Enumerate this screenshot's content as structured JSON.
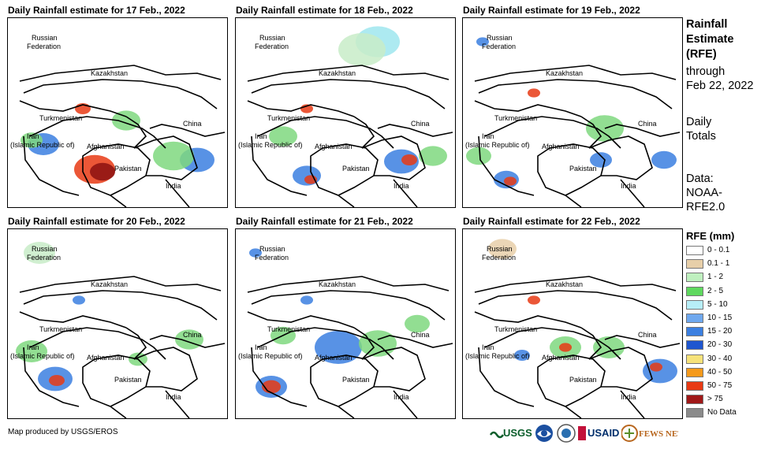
{
  "panels": [
    {
      "title": "Daily Rainfall estimate for 17 Feb., 2022",
      "blobs": [
        [
          110,
          192,
          26,
          "#e83a14"
        ],
        [
          120,
          195,
          16,
          "#8c1010"
        ],
        [
          45,
          160,
          20,
          "#3b7fe0"
        ],
        [
          240,
          180,
          22,
          "#3b7fe0"
        ],
        [
          210,
          175,
          26,
          "#7fd87f"
        ],
        [
          150,
          130,
          18,
          "#7fd87f"
        ],
        [
          95,
          115,
          10,
          "#e83a14"
        ],
        [
          30,
          155,
          14,
          "#7fd87f"
        ]
      ]
    },
    {
      "title": "Daily Rainfall estimate for 18 Feb., 2022",
      "blobs": [
        [
          90,
          200,
          18,
          "#3b7fe0"
        ],
        [
          95,
          205,
          8,
          "#e83a14"
        ],
        [
          210,
          182,
          22,
          "#3b7fe0"
        ],
        [
          220,
          180,
          10,
          "#e83a14"
        ],
        [
          180,
          30,
          28,
          "#9fe6ee"
        ],
        [
          160,
          40,
          30,
          "#c8ecc8"
        ],
        [
          60,
          150,
          18,
          "#7fd87f"
        ],
        [
          90,
          115,
          8,
          "#e83a14"
        ],
        [
          250,
          175,
          18,
          "#7fd87f"
        ]
      ]
    },
    {
      "title": "Daily Rainfall estimate for 19 Feb., 2022",
      "blobs": [
        [
          55,
          205,
          16,
          "#3b7fe0"
        ],
        [
          60,
          207,
          8,
          "#e83a14"
        ],
        [
          255,
          180,
          16,
          "#3b7fe0"
        ],
        [
          175,
          180,
          14,
          "#3b7fe0"
        ],
        [
          180,
          140,
          24,
          "#7fd87f"
        ],
        [
          90,
          95,
          8,
          "#e83a14"
        ],
        [
          25,
          30,
          8,
          "#3b7fe0"
        ],
        [
          20,
          175,
          16,
          "#7fd87f"
        ]
      ]
    },
    {
      "title": "Daily Rainfall estimate for 20 Feb., 2022",
      "blobs": [
        [
          60,
          190,
          22,
          "#3b7fe0"
        ],
        [
          62,
          192,
          10,
          "#e83a14"
        ],
        [
          30,
          155,
          20,
          "#7fd87f"
        ],
        [
          230,
          140,
          18,
          "#7fd87f"
        ],
        [
          90,
          90,
          8,
          "#3b7fe0"
        ],
        [
          40,
          30,
          20,
          "#c8ecc8"
        ],
        [
          165,
          165,
          12,
          "#7fd87f"
        ]
      ]
    },
    {
      "title": "Daily Rainfall estimate for 21 Feb., 2022",
      "blobs": [
        [
          45,
          200,
          20,
          "#3b7fe0"
        ],
        [
          45,
          200,
          12,
          "#e83a14"
        ],
        [
          130,
          150,
          30,
          "#3b7fe0"
        ],
        [
          180,
          145,
          24,
          "#7fd87f"
        ],
        [
          90,
          90,
          8,
          "#3b7fe0"
        ],
        [
          25,
          30,
          8,
          "#3b7fe0"
        ],
        [
          60,
          135,
          16,
          "#7fd87f"
        ],
        [
          230,
          120,
          16,
          "#7fd87f"
        ]
      ]
    },
    {
      "title": "Daily Rainfall estimate for 22 Feb., 2022",
      "blobs": [
        [
          130,
          150,
          20,
          "#7fd87f"
        ],
        [
          130,
          150,
          8,
          "#e83a14"
        ],
        [
          75,
          160,
          10,
          "#3b7fe0"
        ],
        [
          250,
          180,
          22,
          "#3b7fe0"
        ],
        [
          245,
          175,
          8,
          "#e83a14"
        ],
        [
          185,
          150,
          20,
          "#7fd87f"
        ],
        [
          90,
          90,
          8,
          "#e83a14"
        ],
        [
          50,
          25,
          18,
          "#e7cfa9"
        ]
      ]
    }
  ],
  "map_labels": {
    "russia": "Russian",
    "federation": "Federation",
    "kazakhstan": "Kazakhstan",
    "turkmenistan": "Turkmenistan",
    "iran": "Iran",
    "islamic": "(Islamic Republic of)",
    "afghanistan": "Afghanistan",
    "pakistan": "Pakistan",
    "china": "China",
    "india": "India"
  },
  "sidebar": {
    "rainfall": "Rainfall",
    "estimate": "Estimate",
    "rfe": "(RFE)",
    "through": "through",
    "date": "Feb 22, 2022",
    "daily": "Daily",
    "totals": "Totals",
    "data": "Data:",
    "noaa": "NOAA-",
    "rfe2": "RFE2.0"
  },
  "legend": {
    "title": "RFE (mm)",
    "items": [
      {
        "label": "0 - 0.1",
        "color": "#ffffff"
      },
      {
        "label": "0.1 - 1",
        "color": "#e7cfa9"
      },
      {
        "label": "1 - 2",
        "color": "#bff0bf"
      },
      {
        "label": "2 - 5",
        "color": "#5fd85f"
      },
      {
        "label": "5 - 10",
        "color": "#b7eef7"
      },
      {
        "label": "10 - 15",
        "color": "#6fa8ee"
      },
      {
        "label": "15 - 20",
        "color": "#3b7fe0"
      },
      {
        "label": "20 - 30",
        "color": "#1f56cf"
      },
      {
        "label": "30 - 40",
        "color": "#f6e27a"
      },
      {
        "label": "40 - 50",
        "color": "#f59a1c"
      },
      {
        "label": "50 - 75",
        "color": "#e83a14"
      },
      {
        "label": "> 75",
        "color": "#a01818"
      },
      {
        "label": "No Data",
        "color": "#8a8a8a"
      }
    ]
  },
  "credit": "Map produced by USGS/EROS",
  "logos": {
    "usgs": "USGS",
    "usaid": "USAID",
    "fews": "FEWS NET"
  }
}
